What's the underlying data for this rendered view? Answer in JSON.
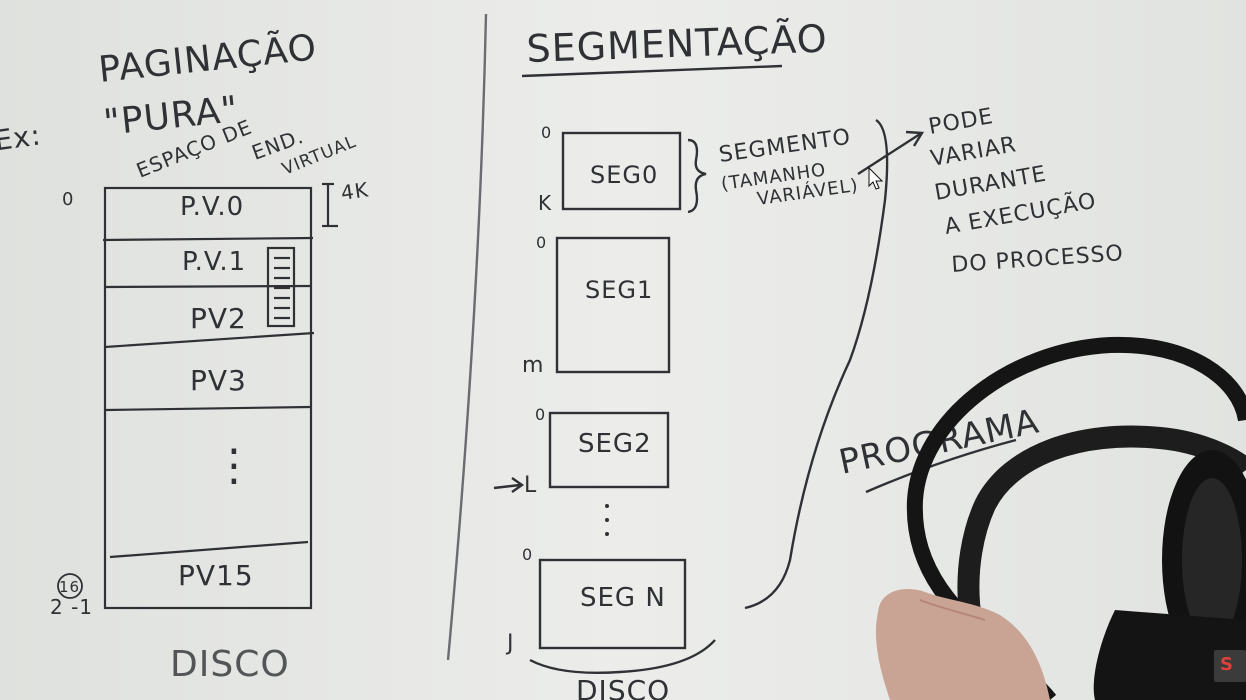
{
  "board": {
    "left_title_line1": "PAGINAÇÃO",
    "left_title_line2": "\"PURA\"",
    "left_prefix": "Ex:",
    "space_label_1": "ESPAÇO DE",
    "space_label_2": "END.",
    "space_label_3": "VIRTUAL",
    "addr_zero": "0",
    "page_size": "4K",
    "pages": [
      "P.V.0",
      "P.V.1",
      "PV2",
      "PV3",
      "⋮",
      "PV15"
    ],
    "addr_bottom_top": "16",
    "addr_bottom": "2  -1",
    "left_bottom_label": "DISCO",
    "right_title": "SEGMENTAÇÃO",
    "segments": [
      {
        "label": "SEG0",
        "start": "0",
        "end": "K"
      },
      {
        "label": "SEG1",
        "start": "0",
        "end": "m"
      },
      {
        "label": "SEG2",
        "start": "0",
        "end": "L"
      },
      {
        "label": "SEG N",
        "start": "0",
        "end": "J"
      }
    ],
    "segment_note_1": "SEGMENTO",
    "segment_note_2": "(TAMANHO",
    "segment_note_3": "VARIÁVEL)",
    "vary_note": [
      "PODE",
      "VARIAR",
      "DURANTE",
      "A EXECUÇÃO",
      "DO PROCESSO"
    ],
    "program_label": "PROGRAMA",
    "right_bottom_label": "DISCO"
  },
  "colors": {
    "board": "#e4e6e3",
    "marker": "#2f3134",
    "headphones": "#151515",
    "hand": "#c9a394",
    "badge": "#3b3b3b",
    "badge_accent": "#e0403a"
  },
  "icons": {
    "badge": "logo-badge-icon",
    "cursor": "mouse-cursor-icon"
  }
}
